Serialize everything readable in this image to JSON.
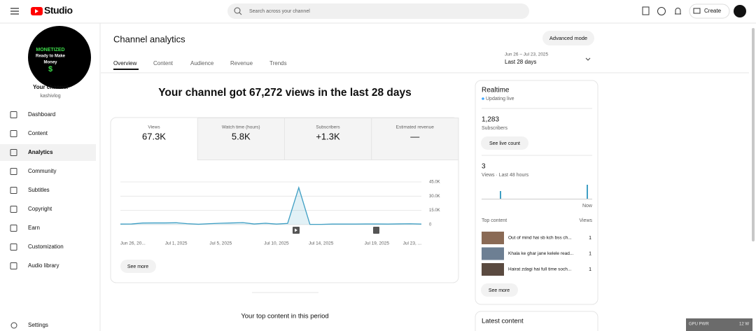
{
  "topbar": {
    "logo": "Studio",
    "search_placeholder": "Search across your channel",
    "create": "Create"
  },
  "sidebar": {
    "avatar": {
      "line1": "MONETIZED",
      "line2": "Ready to Make",
      "line3": "Money",
      "symbol": "$"
    },
    "channel_title": "Your channel",
    "channel_handle": "kashivlog",
    "menu": [
      "Dashboard",
      "Content",
      "Analytics",
      "Community",
      "Subtitles",
      "Copyright",
      "Earn",
      "Customization",
      "Audio library"
    ],
    "settings": "Settings"
  },
  "header": {
    "title": "Channel analytics",
    "advanced": "Advanced mode",
    "tabs": [
      "Overview",
      "Content",
      "Audience",
      "Revenue",
      "Trends"
    ],
    "date_range": "Jun 26 – Jul 23, 2025",
    "period": "Last 28 days"
  },
  "headline": "Your channel got 67,272 views in the last 28 days",
  "metrics": [
    {
      "label": "Views",
      "value": "67.3K"
    },
    {
      "label": "Watch time (hours)",
      "value": "5.8K"
    },
    {
      "label": "Subscribers",
      "value": "+1.3K"
    },
    {
      "label": "Estimated revenue",
      "value": "—"
    }
  ],
  "views_chart": {
    "type": "line",
    "color": "#3f9fc4",
    "categories": [
      "Jun 26, 20...",
      null,
      null,
      null,
      null,
      "Jul 1, 2025",
      null,
      null,
      null,
      "Jul 5, 2025",
      null,
      null,
      null,
      null,
      "Jul 10, 2025",
      null,
      null,
      null,
      "Jul 14, 2025",
      null,
      null,
      null,
      null,
      "Jul 19, 2025",
      null,
      null,
      null,
      "Jul 23, ..."
    ],
    "values": [
      600,
      700,
      1700,
      1800,
      1800,
      2000,
      1000,
      400,
      1000,
      1500,
      1800,
      2100,
      700,
      1500,
      600,
      1300,
      39000,
      300,
      300,
      600,
      600,
      600,
      700,
      700,
      600,
      800,
      900,
      600
    ],
    "ylim": [
      0,
      45000
    ],
    "yticks": [
      0,
      {
        "value": 15000,
        "label": "15.0K"
      },
      {
        "value": 30000,
        "label": "30.0K"
      },
      {
        "value": 45000,
        "label": "45.0K"
      }
    ],
    "grid": true,
    "see_more": "See more"
  },
  "realtime": {
    "title": "Realtime",
    "status": "Updating live",
    "subscribers": "1,283",
    "subscribers_label": "Subscribers",
    "live_count": "See live count",
    "views": "3",
    "views_label": "Views · Last 48 hours",
    "now": "Now",
    "top_content": "Top content",
    "views_col": "Views",
    "rows": [
      {
        "title": "Out of mind hai sb kch bss ch...",
        "views": 1
      },
      {
        "title": "Khala ke ghar jane kelele read...",
        "views": 1
      },
      {
        "title": "Hairat zdagi hai full time soch...",
        "views": 1
      }
    ],
    "see_more": "See more"
  },
  "top_content_title": "Your top content in this period",
  "latest_content": "Latest content",
  "overlay": {
    "label": "GPU PWR",
    "value": "12 W"
  }
}
